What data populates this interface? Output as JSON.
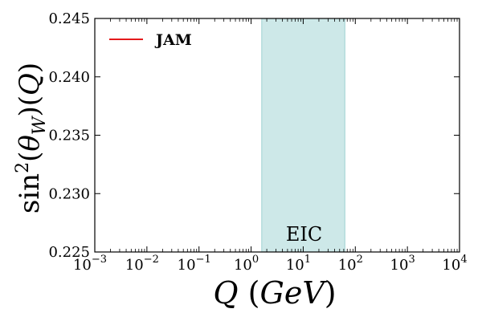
{
  "chart_data": {
    "type": "line",
    "xlabel": "Q (GeV)",
    "ylabel": "sin²(θ_W)(Q)",
    "xscale": "log",
    "xlim": [
      0.001,
      10000
    ],
    "ylim": [
      0.225,
      0.245
    ],
    "grid": false,
    "legend_position": "top-left",
    "x_ticks": [
      {
        "value": 0.001,
        "base": "10",
        "exp": "−3"
      },
      {
        "value": 0.01,
        "base": "10",
        "exp": "−2"
      },
      {
        "value": 0.1,
        "base": "10",
        "exp": "−1"
      },
      {
        "value": 1,
        "base": "10",
        "exp": "0"
      },
      {
        "value": 10,
        "base": "10",
        "exp": "1"
      },
      {
        "value": 100,
        "base": "10",
        "exp": "2"
      },
      {
        "value": 1000,
        "base": "10",
        "exp": "3"
      },
      {
        "value": 10000,
        "base": "10",
        "exp": "4"
      }
    ],
    "y_ticks": [
      {
        "value": 0.225,
        "label": "0.225"
      },
      {
        "value": 0.23,
        "label": "0.230"
      },
      {
        "value": 0.235,
        "label": "0.235"
      },
      {
        "value": 0.24,
        "label": "0.240"
      },
      {
        "value": 0.245,
        "label": "0.245"
      }
    ],
    "series": [
      {
        "name": "JAM",
        "color": "#e41a1c",
        "x": [],
        "y": []
      }
    ],
    "shaded_regions": [
      {
        "label": "EIC",
        "x_range": [
          1.6,
          63
        ],
        "color": "#cde8e8",
        "edge_color": "#9fd2d2"
      }
    ]
  }
}
